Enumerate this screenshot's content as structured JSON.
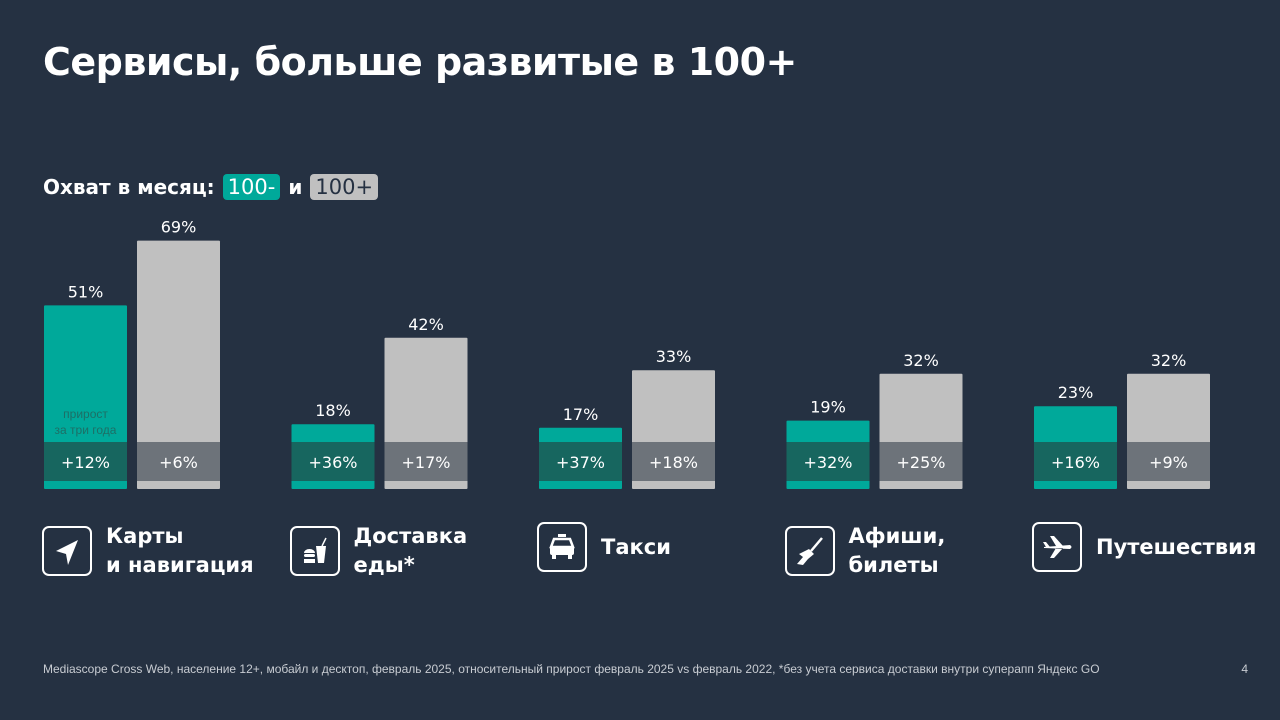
{
  "title": "Сервисы, больше развитые в 100+",
  "legend": {
    "prefix": "Охват  в месяц:",
    "a": "100-",
    "and": "и",
    "b": "100+"
  },
  "growth_note": [
    "прирост",
    "за три года"
  ],
  "colors": {
    "background": "#253142",
    "a": "#00a99a",
    "a_dark": "#17665f",
    "b": "#c0c0c0",
    "b_dark": "#6d737a"
  },
  "chart_data": {
    "type": "bar",
    "categories": [
      "Карты\nи навигация",
      "Доставка\nеды*",
      "Такси",
      "Афиши,\nбилеты",
      "Путешествия"
    ],
    "icons": [
      "navigation-arrow-icon",
      "fast-food-icon",
      "taxi-icon",
      "guitar-icon",
      "airplane-icon"
    ],
    "series": [
      {
        "name": "100-",
        "values": [
          51,
          18,
          17,
          19,
          23
        ],
        "labels": [
          "51%",
          "18%",
          "17%",
          "19%",
          "23%"
        ],
        "growth": [
          "+12%",
          "+36%",
          "+37%",
          "+32%",
          "+16%"
        ]
      },
      {
        "name": "100+",
        "values": [
          69,
          42,
          33,
          32,
          32
        ],
        "labels": [
          "69%",
          "42%",
          "33%",
          "32%",
          "32%"
        ],
        "growth": [
          "+6%",
          "+17%",
          "+18%",
          "+25%",
          "+9%"
        ]
      }
    ],
    "ylim": [
      0,
      100
    ]
  },
  "footnote": "Mediascope Cross Web, население 12+, мобайл и десктоп, февраль 2025, относительный прирост февраль 2025 vs февраль 2022, *без учета сервиса доставки внутри суперапп Яндекс GO",
  "page_number": "4"
}
